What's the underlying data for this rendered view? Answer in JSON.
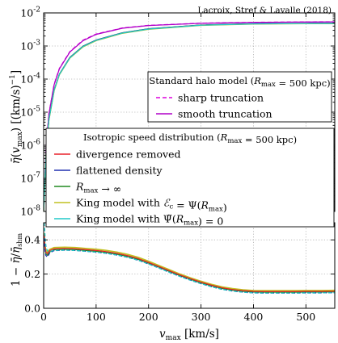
{
  "credit": "Lacroix, Stref & Lavalle (2018)",
  "colors": {
    "sharp": "#dd00dd",
    "smooth": "#b000c8",
    "divergence": "#e8202a",
    "flattened": "#2030b0",
    "rmax_inf": "#208a20",
    "king_ec": "#c0c020",
    "king_psi": "#20c8c8"
  },
  "chart_data": [
    {
      "type": "line",
      "y_scale": "log",
      "xlim": [
        0,
        555
      ],
      "ylim": [
        1e-08,
        0.01
      ],
      "ylabel": "η̄(v_max) [(km/s)⁻¹]",
      "yticks": [
        {
          "v": 1e-08,
          "label": "10-8"
        },
        {
          "v": 1e-07,
          "label": "10-7"
        },
        {
          "v": 1e-06,
          "label": "10-6"
        },
        {
          "v": 1e-05,
          "label": "10-5"
        },
        {
          "v": 0.0001,
          "label": "10-4"
        },
        {
          "v": 0.001,
          "label": "10-3"
        },
        {
          "v": 0.01,
          "label": "10-2"
        }
      ],
      "grid": true,
      "legends": [
        {
          "title": "Standard halo model (R_max = 500 kpc)",
          "title_text": "Standard halo model (",
          "placement": "upper-right",
          "entries": [
            {
              "label": "sharp truncation",
              "color_key": "sharp",
              "dashed": true
            },
            {
              "label": "smooth truncation",
              "color_key": "smooth",
              "dashed": false
            }
          ]
        },
        {
          "title": "Isotropic speed distribution (R_max = 500 kpc)",
          "title_text": "Isotropic speed distribution (",
          "placement": "lower-right",
          "entries": [
            {
              "label": "divergence removed",
              "color_key": "divergence"
            },
            {
              "label": "flattened density",
              "color_key": "flattened"
            },
            {
              "label": "R_max → ∞",
              "color_key": "rmax_inf"
            },
            {
              "label": "King model with E_c = Ψ(R_max)",
              "color_key": "king_ec"
            },
            {
              "label": "King model with Ψ̃(R_max) = 0",
              "color_key": "king_psi"
            }
          ]
        }
      ],
      "series": [
        {
          "name": "sharp truncation",
          "color_key": "sharp",
          "dashed": true,
          "width": 1.3,
          "x": [
            0,
            5,
            10,
            20,
            30,
            50,
            75,
            100,
            150,
            200,
            300,
            400,
            500,
            555
          ],
          "y": [
            1e-08,
            1.1e-06,
            9e-06,
            7e-05,
            0.00021,
            0.00068,
            0.0015,
            0.0023,
            0.0035,
            0.0042,
            0.0049,
            0.0052,
            0.00535,
            0.0054
          ]
        },
        {
          "name": "smooth truncation",
          "color_key": "smooth",
          "dashed": false,
          "width": 1.3,
          "x": [
            0,
            5,
            10,
            20,
            30,
            50,
            75,
            100,
            150,
            200,
            300,
            400,
            500,
            555
          ],
          "y": [
            1e-08,
            1.05e-06,
            8.7e-06,
            6.8e-05,
            0.000205,
            0.00066,
            0.00145,
            0.00225,
            0.00345,
            0.00415,
            0.00485,
            0.00515,
            0.0053,
            0.00535
          ]
        },
        {
          "name": "divergence removed",
          "color_key": "divergence",
          "width": 1.2,
          "x": [
            0,
            5,
            10,
            20,
            30,
            50,
            75,
            100,
            150,
            200,
            300,
            400,
            500,
            555
          ],
          "y": [
            1e-08,
            7.2e-07,
            6e-06,
            4.7e-05,
            0.00014,
            0.00045,
            0.00098,
            0.0015,
            0.0025,
            0.0033,
            0.0043,
            0.0047,
            0.00482,
            0.00486
          ]
        },
        {
          "name": "flattened density",
          "color_key": "flattened",
          "width": 1.2,
          "x": [
            0,
            5,
            10,
            20,
            30,
            50,
            75,
            100,
            150,
            200,
            300,
            400,
            500,
            555
          ],
          "y": [
            1e-08,
            7.3e-07,
            6.1e-06,
            4.75e-05,
            0.000142,
            0.000455,
            0.00099,
            0.00152,
            0.00252,
            0.00332,
            0.00432,
            0.00472,
            0.00484,
            0.00488
          ]
        },
        {
          "name": "R_max → ∞",
          "color_key": "rmax_inf",
          "width": 1.2,
          "x": [
            0,
            5,
            10,
            20,
            30,
            50,
            75,
            100,
            150,
            200,
            300,
            400,
            500,
            555
          ],
          "y": [
            1e-08,
            7.1e-07,
            5.9e-06,
            4.65e-05,
            0.000139,
            0.000445,
            0.00097,
            0.00149,
            0.00248,
            0.00327,
            0.00427,
            0.00467,
            0.0048,
            0.00484
          ]
        },
        {
          "name": "King model with E_c = Ψ(R_max)",
          "color_key": "king_ec",
          "width": 1.4,
          "x": [
            0,
            5,
            10,
            20,
            30,
            50,
            75,
            100,
            150,
            200,
            300,
            400,
            500,
            555
          ],
          "y": [
            1e-08,
            6.9e-07,
            5.7e-06,
            4.5e-05,
            0.000135,
            0.00043,
            0.00094,
            0.00145,
            0.00242,
            0.0032,
            0.0042,
            0.0046,
            0.00474,
            0.00478
          ]
        },
        {
          "name": "King model with Ψ̃(R_max) = 0",
          "color_key": "king_psi",
          "width": 1.2,
          "x": [
            0,
            5,
            10,
            20,
            30,
            50,
            75,
            100,
            150,
            200,
            300,
            400,
            500,
            555
          ],
          "y": [
            1e-08,
            7e-07,
            5.8e-06,
            4.6e-05,
            0.000138,
            0.00044,
            0.00096,
            0.00148,
            0.00246,
            0.00325,
            0.00425,
            0.00465,
            0.00478,
            0.00482
          ]
        }
      ]
    },
    {
      "type": "line",
      "xlim": [
        0,
        555
      ],
      "ylim": [
        0.0,
        0.5
      ],
      "xlabel": "v_max [km/s]",
      "ylabel": "1 − η̄/η̄_shm",
      "xticks": [
        0,
        100,
        200,
        300,
        400,
        500
      ],
      "yticks": [
        {
          "v": 0.0,
          "label": "0.0"
        },
        {
          "v": 0.2,
          "label": "0.2"
        },
        {
          "v": 0.4,
          "label": "0.4"
        }
      ],
      "grid": true,
      "series": [
        {
          "name": "King model with E_c = Ψ(R_max)",
          "color_key": "king_ec",
          "width": 1.7,
          "x": [
            1,
            2,
            4,
            7,
            12,
            20,
            40,
            60,
            80,
            100,
            120,
            140,
            160,
            180,
            200,
            220,
            240,
            260,
            280,
            300,
            320,
            340,
            360,
            380,
            400,
            420,
            450,
            480,
            500,
            530,
            555
          ],
          "y": [
            0.44,
            0.38,
            0.34,
            0.33,
            0.345,
            0.355,
            0.357,
            0.355,
            0.35,
            0.345,
            0.338,
            0.328,
            0.315,
            0.298,
            0.275,
            0.25,
            0.225,
            0.2,
            0.178,
            0.158,
            0.14,
            0.125,
            0.115,
            0.108,
            0.104,
            0.103,
            0.103,
            0.103,
            0.104,
            0.104,
            0.105
          ]
        },
        {
          "name": "R_max → ∞",
          "color_key": "rmax_inf",
          "width": 1.2,
          "x": [
            1,
            2,
            4,
            7,
            12,
            20,
            40,
            60,
            80,
            100,
            120,
            140,
            160,
            180,
            200,
            220,
            240,
            260,
            280,
            300,
            320,
            340,
            360,
            380,
            400,
            420,
            450,
            480,
            500,
            530,
            555
          ],
          "y": [
            0.42,
            0.36,
            0.32,
            0.31,
            0.33,
            0.342,
            0.345,
            0.343,
            0.338,
            0.333,
            0.326,
            0.316,
            0.303,
            0.286,
            0.264,
            0.24,
            0.215,
            0.191,
            0.169,
            0.149,
            0.131,
            0.116,
            0.106,
            0.099,
            0.095,
            0.094,
            0.094,
            0.094,
            0.095,
            0.095,
            0.096
          ]
        },
        {
          "name": "divergence removed",
          "color_key": "divergence",
          "width": 1.2,
          "x": [
            1,
            2,
            4,
            7,
            12,
            20,
            40,
            60,
            80,
            100,
            120,
            140,
            160,
            180,
            200,
            220,
            240,
            260,
            280,
            300,
            320,
            340,
            360,
            380,
            400,
            420,
            450,
            480,
            500,
            530,
            555
          ],
          "y": [
            0.43,
            0.37,
            0.33,
            0.32,
            0.338,
            0.348,
            0.35,
            0.348,
            0.343,
            0.338,
            0.331,
            0.321,
            0.308,
            0.291,
            0.268,
            0.244,
            0.219,
            0.195,
            0.173,
            0.153,
            0.135,
            0.12,
            0.11,
            0.103,
            0.099,
            0.098,
            0.098,
            0.098,
            0.099,
            0.099,
            0.1
          ]
        },
        {
          "name": "flattened density",
          "color_key": "flattened",
          "width": 1.3,
          "dashed": true,
          "x": [
            1,
            2,
            4,
            7,
            12,
            20,
            40,
            60,
            80,
            100,
            120,
            140,
            160,
            180,
            200,
            220,
            240,
            260,
            280,
            300,
            320,
            340,
            360,
            380,
            400,
            420,
            450,
            480,
            500,
            530,
            555
          ],
          "y": [
            0.41,
            0.35,
            0.31,
            0.3,
            0.325,
            0.337,
            0.34,
            0.338,
            0.333,
            0.328,
            0.321,
            0.311,
            0.298,
            0.281,
            0.259,
            0.235,
            0.21,
            0.186,
            0.164,
            0.144,
            0.126,
            0.111,
            0.101,
            0.094,
            0.09,
            0.089,
            0.089,
            0.089,
            0.09,
            0.09,
            0.091
          ]
        },
        {
          "name": "King model with Ψ̃(R_max) = 0",
          "color_key": "king_psi",
          "width": 1.3,
          "dashed": true,
          "x": [
            1,
            2,
            3,
            5,
            8,
            12,
            20,
            40,
            60,
            80,
            100,
            120,
            140,
            160,
            180,
            200,
            220,
            240,
            260,
            280,
            300,
            320,
            340,
            360,
            380,
            400,
            420,
            450,
            480,
            500,
            530,
            555
          ],
          "y": [
            0.5,
            0.46,
            0.4,
            0.35,
            0.335,
            0.333,
            0.338,
            0.34,
            0.338,
            0.333,
            0.328,
            0.321,
            0.311,
            0.298,
            0.281,
            0.259,
            0.235,
            0.21,
            0.186,
            0.164,
            0.144,
            0.126,
            0.111,
            0.101,
            0.094,
            0.09,
            0.089,
            0.089,
            0.089,
            0.09,
            0.09,
            0.091
          ]
        }
      ]
    }
  ]
}
